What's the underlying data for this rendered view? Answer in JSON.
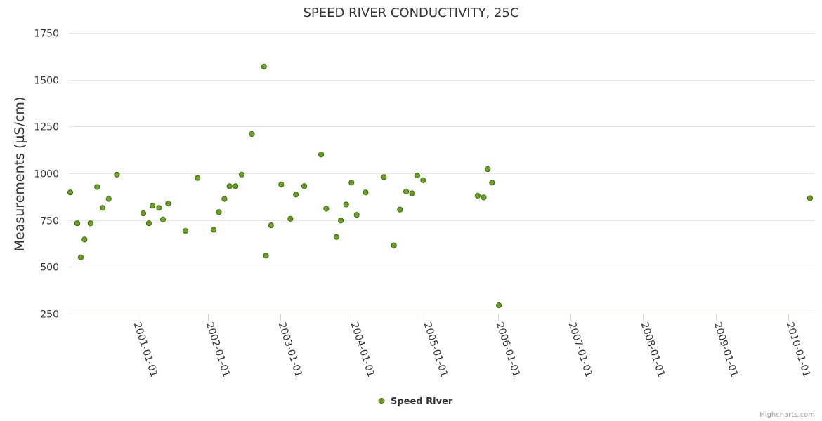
{
  "chart_data": {
    "type": "scatter",
    "title": "SPEED RIVER CONDUCTIVITY, 25C",
    "xlabel": "",
    "ylabel": "Measurements (µS/cm)",
    "x_axis_type": "datetime",
    "xlim": [
      "2000-02-01",
      "2010-05-15"
    ],
    "ylim": [
      250,
      1750
    ],
    "y_ticks": [
      250,
      500,
      750,
      1000,
      1250,
      1500,
      1750
    ],
    "x_ticks": [
      "2001-01-01",
      "2002-01-01",
      "2003-01-01",
      "2004-01-01",
      "2005-01-01",
      "2006-01-01",
      "2007-01-01",
      "2008-01-01",
      "2009-01-01",
      "2010-01-01"
    ],
    "grid": true,
    "legend_position": "bottom-center",
    "colors": {
      "marker_fill": "#6aa121",
      "marker_stroke": "#3d6b10"
    },
    "series": [
      {
        "name": "Speed River",
        "points": [
          [
            "2000-02-08",
            898
          ],
          [
            "2000-03-14",
            733
          ],
          [
            "2000-04-01",
            551
          ],
          [
            "2000-04-20",
            646
          ],
          [
            "2000-05-20",
            733
          ],
          [
            "2000-06-22",
            927
          ],
          [
            "2000-07-20",
            815
          ],
          [
            "2000-08-20",
            863
          ],
          [
            "2000-09-30",
            993
          ],
          [
            "2001-02-10",
            786
          ],
          [
            "2001-03-10",
            733
          ],
          [
            "2001-03-28",
            827
          ],
          [
            "2001-04-30",
            815
          ],
          [
            "2001-05-20",
            753
          ],
          [
            "2001-06-15",
            838
          ],
          [
            "2001-09-10",
            692
          ],
          [
            "2001-11-10",
            975
          ],
          [
            "2002-01-30",
            698
          ],
          [
            "2002-02-25",
            793
          ],
          [
            "2002-03-25",
            863
          ],
          [
            "2002-04-20",
            931
          ],
          [
            "2002-05-20",
            931
          ],
          [
            "2002-06-20",
            993
          ],
          [
            "2002-08-10",
            1210
          ],
          [
            "2002-10-10",
            1570
          ],
          [
            "2002-10-20",
            560
          ],
          [
            "2002-11-15",
            722
          ],
          [
            "2003-01-05",
            940
          ],
          [
            "2003-02-20",
            757
          ],
          [
            "2003-03-20",
            886
          ],
          [
            "2003-05-01",
            931
          ],
          [
            "2003-07-25",
            1100
          ],
          [
            "2003-08-20",
            811
          ],
          [
            "2003-10-10",
            660
          ],
          [
            "2003-11-01",
            748
          ],
          [
            "2003-11-28",
            833
          ],
          [
            "2003-12-25",
            950
          ],
          [
            "2004-01-20",
            778
          ],
          [
            "2004-03-05",
            898
          ],
          [
            "2004-06-05",
            980
          ],
          [
            "2004-07-25",
            615
          ],
          [
            "2004-08-25",
            806
          ],
          [
            "2004-09-25",
            903
          ],
          [
            "2004-10-25",
            893
          ],
          [
            "2004-11-20",
            988
          ],
          [
            "2004-12-20",
            963
          ],
          [
            "2005-09-20",
            880
          ],
          [
            "2005-10-20",
            871
          ],
          [
            "2005-11-10",
            1022
          ],
          [
            "2005-12-01",
            950
          ],
          [
            "2006-01-05",
            295
          ],
          [
            "2010-04-20",
            867
          ]
        ]
      }
    ]
  },
  "legend": {
    "items": [
      {
        "label": "Speed River"
      }
    ]
  },
  "credits": {
    "text": "Highcharts.com"
  }
}
